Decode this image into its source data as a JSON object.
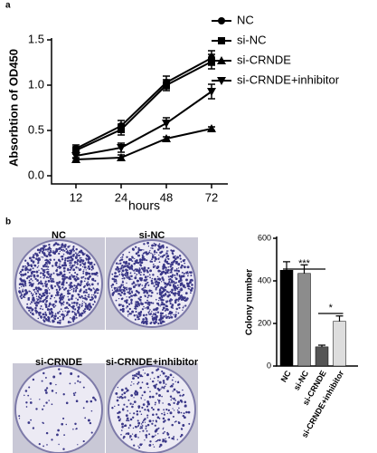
{
  "panels": [
    "a",
    "b"
  ],
  "dishes": [
    "NC",
    "si-NC",
    "si-CRNDE",
    "si-CRNDE+inhibitor"
  ],
  "chart_data": [
    {
      "type": "line",
      "y_label": "Absorbtion of OD450",
      "x_label": "hours",
      "categories": [
        "12",
        "24",
        "48",
        "72"
      ],
      "ylim": [
        0,
        1.5
      ],
      "yticks": [
        {
          "value": 0,
          "label": "0.0"
        },
        0.5,
        {
          "value": 1,
          "label": "1.0"
        },
        1.5
      ],
      "series": [
        {
          "name": "NC",
          "color": "#000000",
          "marker": "circle",
          "values": [
            0.3,
            0.55,
            1.03,
            1.3
          ],
          "errors": [
            0.04,
            0.06,
            0.07,
            0.08
          ]
        },
        {
          "name": "si-NC",
          "color": "#000000",
          "marker": "square",
          "values": [
            0.28,
            0.51,
            1.0,
            1.26
          ],
          "errors": [
            0.04,
            0.06,
            0.06,
            0.08
          ]
        },
        {
          "name": "si-CRNDE",
          "color": "#000000",
          "marker": "triangle-up",
          "values": [
            0.18,
            0.2,
            0.41,
            0.52
          ],
          "errors": [
            0.02,
            0.03,
            0.02,
            0.02
          ]
        },
        {
          "name": "si-CRNDE+inhibitor",
          "color": "#000000",
          "marker": "triangle-down",
          "values": [
            0.22,
            0.31,
            0.58,
            0.93
          ],
          "errors": [
            0.03,
            0.05,
            0.06,
            0.08
          ]
        }
      ]
    },
    {
      "type": "bar",
      "y_label": "Colony number",
      "categories": [
        "NC",
        "si-NC",
        "si-CRNDE",
        "si-CRNDE+inhibitor"
      ],
      "values": [
        450,
        435,
        90,
        210
      ],
      "errors": [
        40,
        40,
        8,
        25
      ],
      "colors": [
        "#000000",
        "#8c8c8c",
        "#555555",
        "#dddddd"
      ],
      "ylim": [
        0,
        600
      ],
      "yticks": [
        0,
        200,
        400,
        600
      ],
      "annotations": [
        "***",
        "*"
      ]
    }
  ]
}
